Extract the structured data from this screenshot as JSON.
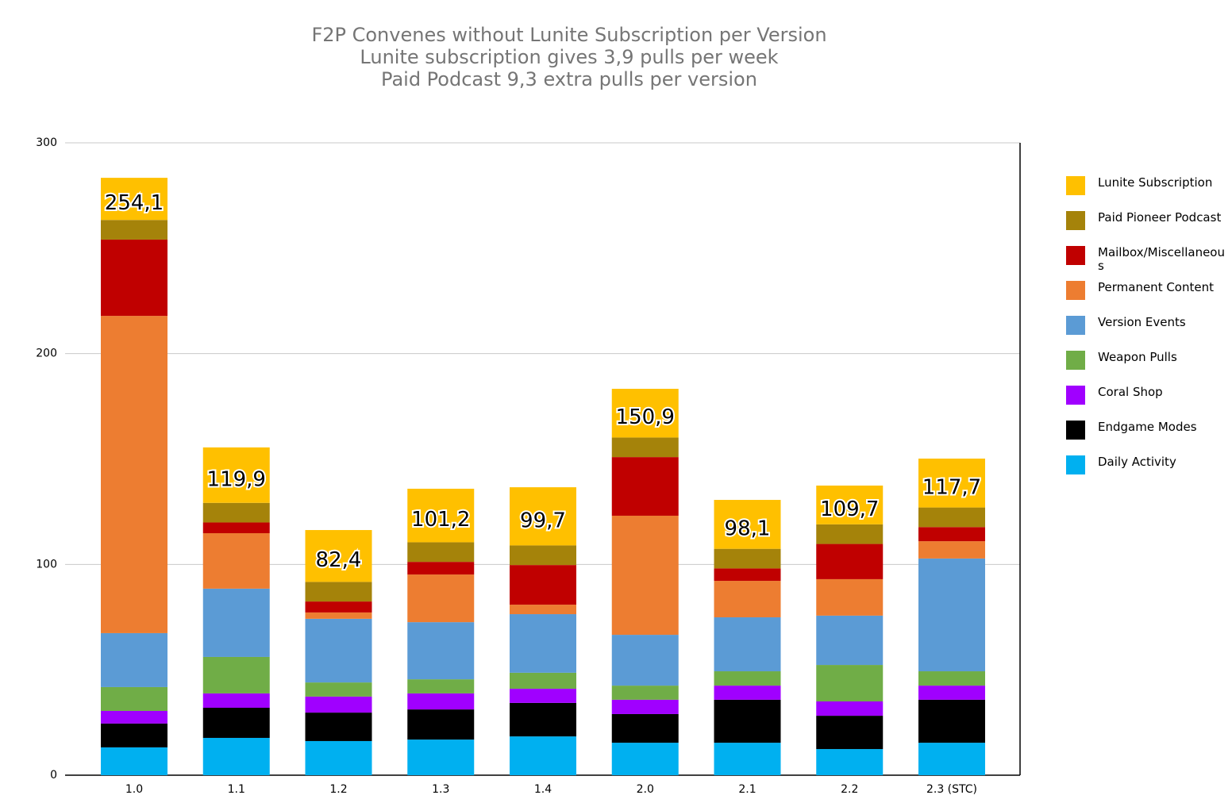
{
  "chart_data": {
    "type": "stacked_bar",
    "title": "F2P Convenes without Lunite Subscription per Version",
    "subtitle": [
      "Lunite subscription gives 3,9 pulls per week",
      "Paid Podcast 9,3 extra pulls per version"
    ],
    "categories": [
      "1.0",
      "1.1",
      "1.2",
      "1.3",
      "1.4",
      "2.0",
      "2.1",
      "2.2",
      "2.3 (STC)"
    ],
    "series": [
      {
        "name": "Daily Activity",
        "color": "#00b0f0",
        "values": [
          13.2,
          17.7,
          16.2,
          16.9,
          18.4,
          15.4,
          15.4,
          12.4,
          15.4
        ]
      },
      {
        "name": "Endgame Modes",
        "color": "#000000",
        "values": [
          11.3,
          14.3,
          13.5,
          14.3,
          15.9,
          13.6,
          20.4,
          15.8,
          20.4
        ]
      },
      {
        "name": "Coral Shop",
        "color": "#a000ff",
        "values": [
          6.0,
          6.8,
          7.6,
          7.6,
          6.7,
          6.8,
          6.7,
          6.8,
          6.7
        ]
      },
      {
        "name": "Weapon Pulls",
        "color": "#70ad47",
        "values": [
          11.3,
          17.3,
          6.7,
          6.7,
          7.6,
          6.7,
          6.8,
          17.3,
          6.8
        ]
      },
      {
        "name": "Version Events",
        "color": "#5b9bd5",
        "values": [
          25.6,
          32.4,
          30.2,
          27.1,
          27.8,
          24.1,
          25.6,
          23.4,
          53.5
        ]
      },
      {
        "name": "Permanent Content",
        "color": "#ed7d31",
        "values": [
          150.5,
          26.3,
          3.0,
          22.6,
          4.5,
          56.5,
          17.3,
          17.3,
          8.2
        ]
      },
      {
        "name": "Mailbox/Miscellaneous",
        "color": "#c00000",
        "values": [
          36.2,
          5.1,
          5.2,
          6.0,
          18.8,
          27.8,
          5.9,
          16.7,
          6.7
        ]
      },
      {
        "name": "Paid Pioneer Podcast",
        "color": "#a5830a",
        "values": [
          9.3,
          9.3,
          9.3,
          9.3,
          9.3,
          9.3,
          9.3,
          9.3,
          9.3
        ]
      },
      {
        "name": "Lunite Subscription",
        "color": "#ffc000",
        "values": [
          20.0,
          26.3,
          24.6,
          25.4,
          27.6,
          23.1,
          23.2,
          18.4,
          23.2
        ]
      }
    ],
    "totals": {
      "values": [
        254.1,
        119.9,
        82.4,
        101.2,
        99.7,
        150.9,
        98.1,
        109.7,
        117.7
      ],
      "value_labels": [
        "254,1",
        "119,9",
        "82,4",
        "101,2",
        "99,7",
        "150,9",
        "98,1",
        "109,7",
        "117,7"
      ]
    },
    "ylim": [
      0,
      300
    ],
    "yticks": [
      0,
      100,
      200,
      300
    ],
    "grid": true,
    "legend": "right"
  }
}
